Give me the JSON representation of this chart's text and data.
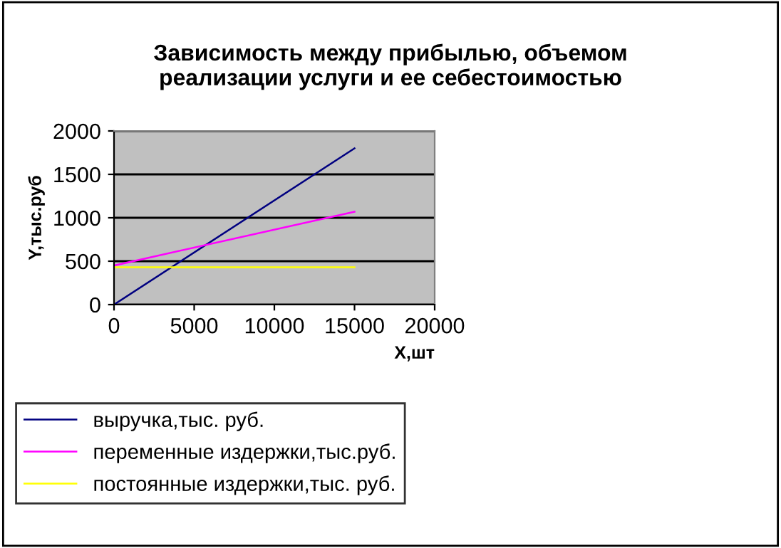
{
  "chart_data": {
    "type": "line",
    "title": "Зависимость между прибылью, объемом\nреализации услуги и ее себестоимостью",
    "xlabel": "Х,шт",
    "ylabel": "Y,тыс.руб",
    "x": [
      0,
      15000
    ],
    "series": [
      {
        "name": "выручка,тыс. руб.",
        "color": "#000080",
        "values": [
          0,
          1800
        ]
      },
      {
        "name": "переменные издержки,тыс.руб.",
        "color": "#ff00ff",
        "values": [
          450,
          1070
        ]
      },
      {
        "name": "постоянные издержки,тыс. руб.",
        "color": "#ffff00",
        "values": [
          430,
          430
        ]
      }
    ],
    "xlim": [
      0,
      20000
    ],
    "xticks": [
      0,
      5000,
      10000,
      15000,
      20000
    ],
    "ylim": [
      0,
      2000
    ],
    "yticks": [
      0,
      500,
      1000,
      1500,
      2000
    ],
    "grid": "y",
    "legend": "bottom left",
    "marker": "none",
    "line_style": "solid"
  }
}
